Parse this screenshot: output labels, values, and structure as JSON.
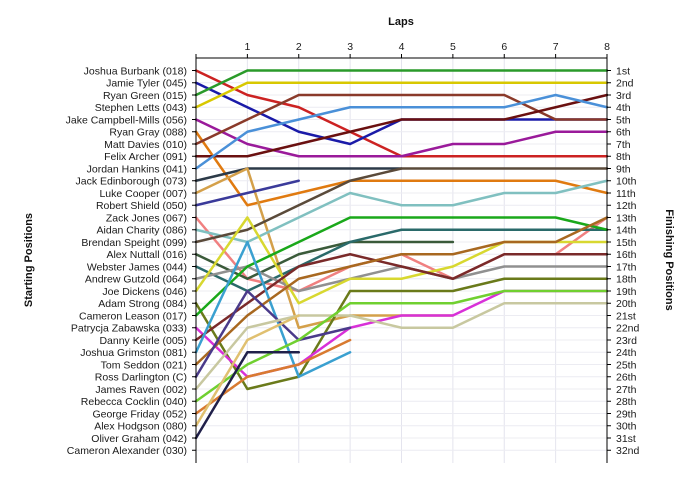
{
  "chart_data": {
    "type": "line",
    "title": "",
    "xlabel": "Laps",
    "ylabel_left": "Starting Positions",
    "ylabel_right": "Finishing Positions",
    "x": [
      0,
      1,
      2,
      3,
      4,
      5,
      6,
      7,
      8
    ],
    "x_tick_labels": [
      "1",
      "2",
      "3",
      "4",
      "5",
      "6",
      "7",
      "8"
    ],
    "position_range": [
      1,
      32
    ],
    "grid": true,
    "left_labels": [
      "Joshua Burbank (018)",
      "Jamie Tyler (045)",
      "Ryan Green (015)",
      "Stephen Letts (043)",
      "Jake Campbell-Mills (056)",
      "Ryan Gray (088)",
      "Matt Davies (010)",
      "Felix Archer (091)",
      "Jordan Hankins (041)",
      "Jack Edinborough (073)",
      "Luke Cooper (007)",
      "Robert Shield (050)",
      "Zack Jones (067)",
      "Aidan Charity (086)",
      "Brendan Speight (099)",
      "Alex Nuttall (016)",
      "Webster James (044)",
      "Andrew Gutzold (064)",
      "Joe Dickens (046)",
      "Adam Strong (084)",
      "Cameron Leason (017)",
      "Patrycja Zabawska (033)",
      "Danny Keirle (005)",
      "Joshua Grimston (081)",
      "Tom Seddon (021)",
      "Ross Darlington (C)",
      "James Raven (002)",
      "Rebecca Cocklin (040)",
      "George Friday (052)",
      "Alex Hodgson (080)",
      "Oliver Graham (042)",
      "Cameron Alexander (030)"
    ],
    "right_labels": [
      "1st",
      "2nd",
      "3rd",
      "4th",
      "5th",
      "6th",
      "7th",
      "8th",
      "9th",
      "10th",
      "11th",
      "12th",
      "13th",
      "14th",
      "15th",
      "16th",
      "17th",
      "18th",
      "19th",
      "20th",
      "21st",
      "22nd",
      "23rd",
      "24th",
      "25th",
      "26th",
      "27th",
      "28th",
      "29th",
      "30th",
      "31st",
      "32nd"
    ],
    "series": [
      {
        "start": "Joshua Burbank (018)",
        "color": "#cc2222",
        "positions": [
          1,
          3,
          4,
          6,
          8,
          8,
          8,
          8,
          8
        ]
      },
      {
        "start": "Jamie Tyler (045)",
        "color": "#1a1aa8",
        "positions": [
          2,
          4,
          6,
          7,
          5,
          5,
          5,
          5,
          5
        ]
      },
      {
        "start": "Ryan Green (015)",
        "color": "#2a9a2a",
        "positions": [
          3,
          1,
          1,
          1,
          1,
          1,
          1,
          1,
          1
        ]
      },
      {
        "start": "Stephen Letts (043)",
        "color": "#d8c800",
        "positions": [
          4,
          2,
          2,
          2,
          2,
          2,
          2,
          2,
          2
        ]
      },
      {
        "start": "Jake Campbell-Mills (056)",
        "color": "#9a1a9a",
        "positions": [
          5,
          7,
          8,
          8,
          8,
          7,
          7,
          6,
          6
        ]
      },
      {
        "start": "Ryan Gray (088)",
        "color": "#e07a10",
        "positions": [
          6,
          12,
          11,
          10,
          10,
          10,
          10,
          10,
          11
        ]
      },
      {
        "start": "Matt Davies (010)",
        "color": "#8a3a2a",
        "positions": [
          7,
          5,
          3,
          3,
          3,
          3,
          3,
          5,
          5
        ]
      },
      {
        "start": "Felix Archer (091)",
        "color": "#6a1010",
        "positions": [
          8,
          8,
          7,
          6,
          5,
          5,
          5,
          4,
          3
        ]
      },
      {
        "start": "Jordan Hankins (041)",
        "color": "#4a90d8",
        "positions": [
          9,
          6,
          5,
          4,
          4,
          4,
          4,
          3,
          4
        ]
      },
      {
        "start": "Jack Edinborough (073)",
        "color": "#2c3a48",
        "positions": [
          10,
          9,
          9,
          9,
          9
        ]
      },
      {
        "start": "Luke Cooper (007)",
        "color": "#d4a04a",
        "positions": [
          11,
          9,
          22,
          21,
          21,
          21
        ]
      },
      {
        "start": "Robert Shield (050)",
        "color": "#3a3a9a",
        "positions": [
          12,
          11,
          10
        ]
      },
      {
        "start": "Zack Jones (067)",
        "color": "#f08080",
        "positions": [
          13,
          18,
          19,
          17,
          16,
          18,
          16,
          16,
          13
        ]
      },
      {
        "start": "Aidan Charity (086)",
        "color": "#80c0c0",
        "positions": [
          14,
          15,
          13,
          11,
          12,
          12,
          11,
          11,
          10
        ]
      },
      {
        "start": "Brendan Speight (099)",
        "color": "#5a4a3a",
        "positions": [
          15,
          14,
          12,
          10,
          9,
          9,
          9,
          9,
          9
        ]
      },
      {
        "start": "Alex Nuttall (016)",
        "color": "#3a5a3a",
        "positions": [
          16,
          18,
          16,
          15,
          15,
          15
        ]
      },
      {
        "start": "Webster James (044)",
        "color": "#2a6a6a",
        "positions": [
          17,
          19,
          17,
          15,
          14,
          14,
          14,
          14,
          14
        ]
      },
      {
        "start": "Andrew Gutzold (064)",
        "color": "#909090",
        "positions": [
          18,
          17,
          19,
          18,
          17,
          18,
          17,
          17,
          17
        ]
      },
      {
        "start": "Joe Dickens (046)",
        "color": "#d8d830",
        "positions": [
          19,
          13,
          20,
          18,
          18,
          17,
          15,
          15,
          15
        ]
      },
      {
        "start": "Adam Strong (084)",
        "color": "#6a7a1a",
        "positions": [
          20,
          27,
          26,
          19,
          19,
          19,
          18,
          18,
          18
        ]
      },
      {
        "start": "Cameron Leason (017)",
        "color": "#1aa81a",
        "positions": [
          21,
          17,
          15,
          13,
          13,
          13,
          13,
          13,
          14
        ]
      },
      {
        "start": "Patrycja Zabawska (033)",
        "color": "#d830d8",
        "positions": [
          22,
          26,
          25,
          22,
          21,
          21,
          19,
          19,
          19
        ]
      },
      {
        "start": "Danny Keirle (005)",
        "color": "#7a2a2a",
        "positions": [
          23,
          20,
          17,
          16,
          17,
          18,
          16,
          16,
          16
        ]
      },
      {
        "start": "Joshua Grimston (081)",
        "color": "#3aa0d0",
        "positions": [
          24,
          15,
          26,
          24
        ]
      },
      {
        "start": "Tom Seddon (021)",
        "color": "#a86820",
        "positions": [
          25,
          21,
          18,
          17,
          16,
          16,
          15,
          15,
          13
        ]
      },
      {
        "start": "Ross Darlington (C)",
        "color": "#4a3a8a",
        "positions": [
          26,
          19,
          23,
          22
        ]
      },
      {
        "start": "James Raven (002)",
        "color": "#c8c8a0",
        "positions": [
          27,
          22,
          21,
          21,
          22,
          22,
          20,
          20,
          20
        ]
      },
      {
        "start": "Rebecca Cocklin (040)",
        "color": "#70d030",
        "positions": [
          28,
          25,
          23,
          20,
          20,
          20,
          19,
          19,
          19
        ]
      },
      {
        "start": "George Friday (052)",
        "color": "#d87a30",
        "positions": [
          29,
          26,
          25,
          23
        ]
      },
      {
        "start": "Alex Hodgson (080)",
        "color": "#e0c070",
        "positions": [
          30,
          23,
          21
        ]
      },
      {
        "start": "Oliver Graham (042)",
        "color": "#20204a",
        "positions": [
          31,
          24,
          24
        ]
      },
      {
        "start": "Cameron Alexander (030)",
        "color": "#6a6a6a",
        "positions": [
          32
        ]
      }
    ]
  }
}
